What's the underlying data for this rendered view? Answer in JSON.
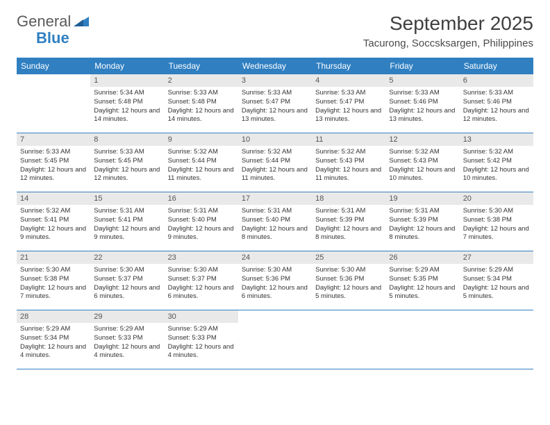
{
  "brand": {
    "name_part1": "General",
    "name_part2": "Blue",
    "accent_color": "#2f7fc1",
    "text_color": "#5a5a5a"
  },
  "header": {
    "month_title": "September 2025",
    "location": "Tacurong, Soccsksargen, Philippines",
    "title_fontsize": 28,
    "location_fontsize": 15
  },
  "calendar": {
    "header_bg": "#2f7fc1",
    "header_text_color": "#ffffff",
    "date_bg": "#e9e9e9",
    "border_color": "#2f7fc1",
    "weekdays": [
      "Sunday",
      "Monday",
      "Tuesday",
      "Wednesday",
      "Thursday",
      "Friday",
      "Saturday"
    ],
    "weeks": [
      [
        null,
        {
          "date": "1",
          "sunrise": "Sunrise: 5:34 AM",
          "sunset": "Sunset: 5:48 PM",
          "daylight": "Daylight: 12 hours and 14 minutes."
        },
        {
          "date": "2",
          "sunrise": "Sunrise: 5:33 AM",
          "sunset": "Sunset: 5:48 PM",
          "daylight": "Daylight: 12 hours and 14 minutes."
        },
        {
          "date": "3",
          "sunrise": "Sunrise: 5:33 AM",
          "sunset": "Sunset: 5:47 PM",
          "daylight": "Daylight: 12 hours and 13 minutes."
        },
        {
          "date": "4",
          "sunrise": "Sunrise: 5:33 AM",
          "sunset": "Sunset: 5:47 PM",
          "daylight": "Daylight: 12 hours and 13 minutes."
        },
        {
          "date": "5",
          "sunrise": "Sunrise: 5:33 AM",
          "sunset": "Sunset: 5:46 PM",
          "daylight": "Daylight: 12 hours and 13 minutes."
        },
        {
          "date": "6",
          "sunrise": "Sunrise: 5:33 AM",
          "sunset": "Sunset: 5:46 PM",
          "daylight": "Daylight: 12 hours and 12 minutes."
        }
      ],
      [
        {
          "date": "7",
          "sunrise": "Sunrise: 5:33 AM",
          "sunset": "Sunset: 5:45 PM",
          "daylight": "Daylight: 12 hours and 12 minutes."
        },
        {
          "date": "8",
          "sunrise": "Sunrise: 5:33 AM",
          "sunset": "Sunset: 5:45 PM",
          "daylight": "Daylight: 12 hours and 12 minutes."
        },
        {
          "date": "9",
          "sunrise": "Sunrise: 5:32 AM",
          "sunset": "Sunset: 5:44 PM",
          "daylight": "Daylight: 12 hours and 11 minutes."
        },
        {
          "date": "10",
          "sunrise": "Sunrise: 5:32 AM",
          "sunset": "Sunset: 5:44 PM",
          "daylight": "Daylight: 12 hours and 11 minutes."
        },
        {
          "date": "11",
          "sunrise": "Sunrise: 5:32 AM",
          "sunset": "Sunset: 5:43 PM",
          "daylight": "Daylight: 12 hours and 11 minutes."
        },
        {
          "date": "12",
          "sunrise": "Sunrise: 5:32 AM",
          "sunset": "Sunset: 5:43 PM",
          "daylight": "Daylight: 12 hours and 10 minutes."
        },
        {
          "date": "13",
          "sunrise": "Sunrise: 5:32 AM",
          "sunset": "Sunset: 5:42 PM",
          "daylight": "Daylight: 12 hours and 10 minutes."
        }
      ],
      [
        {
          "date": "14",
          "sunrise": "Sunrise: 5:32 AM",
          "sunset": "Sunset: 5:41 PM",
          "daylight": "Daylight: 12 hours and 9 minutes."
        },
        {
          "date": "15",
          "sunrise": "Sunrise: 5:31 AM",
          "sunset": "Sunset: 5:41 PM",
          "daylight": "Daylight: 12 hours and 9 minutes."
        },
        {
          "date": "16",
          "sunrise": "Sunrise: 5:31 AM",
          "sunset": "Sunset: 5:40 PM",
          "daylight": "Daylight: 12 hours and 9 minutes."
        },
        {
          "date": "17",
          "sunrise": "Sunrise: 5:31 AM",
          "sunset": "Sunset: 5:40 PM",
          "daylight": "Daylight: 12 hours and 8 minutes."
        },
        {
          "date": "18",
          "sunrise": "Sunrise: 5:31 AM",
          "sunset": "Sunset: 5:39 PM",
          "daylight": "Daylight: 12 hours and 8 minutes."
        },
        {
          "date": "19",
          "sunrise": "Sunrise: 5:31 AM",
          "sunset": "Sunset: 5:39 PM",
          "daylight": "Daylight: 12 hours and 8 minutes."
        },
        {
          "date": "20",
          "sunrise": "Sunrise: 5:30 AM",
          "sunset": "Sunset: 5:38 PM",
          "daylight": "Daylight: 12 hours and 7 minutes."
        }
      ],
      [
        {
          "date": "21",
          "sunrise": "Sunrise: 5:30 AM",
          "sunset": "Sunset: 5:38 PM",
          "daylight": "Daylight: 12 hours and 7 minutes."
        },
        {
          "date": "22",
          "sunrise": "Sunrise: 5:30 AM",
          "sunset": "Sunset: 5:37 PM",
          "daylight": "Daylight: 12 hours and 6 minutes."
        },
        {
          "date": "23",
          "sunrise": "Sunrise: 5:30 AM",
          "sunset": "Sunset: 5:37 PM",
          "daylight": "Daylight: 12 hours and 6 minutes."
        },
        {
          "date": "24",
          "sunrise": "Sunrise: 5:30 AM",
          "sunset": "Sunset: 5:36 PM",
          "daylight": "Daylight: 12 hours and 6 minutes."
        },
        {
          "date": "25",
          "sunrise": "Sunrise: 5:30 AM",
          "sunset": "Sunset: 5:36 PM",
          "daylight": "Daylight: 12 hours and 5 minutes."
        },
        {
          "date": "26",
          "sunrise": "Sunrise: 5:29 AM",
          "sunset": "Sunset: 5:35 PM",
          "daylight": "Daylight: 12 hours and 5 minutes."
        },
        {
          "date": "27",
          "sunrise": "Sunrise: 5:29 AM",
          "sunset": "Sunset: 5:34 PM",
          "daylight": "Daylight: 12 hours and 5 minutes."
        }
      ],
      [
        {
          "date": "28",
          "sunrise": "Sunrise: 5:29 AM",
          "sunset": "Sunset: 5:34 PM",
          "daylight": "Daylight: 12 hours and 4 minutes."
        },
        {
          "date": "29",
          "sunrise": "Sunrise: 5:29 AM",
          "sunset": "Sunset: 5:33 PM",
          "daylight": "Daylight: 12 hours and 4 minutes."
        },
        {
          "date": "30",
          "sunrise": "Sunrise: 5:29 AM",
          "sunset": "Sunset: 5:33 PM",
          "daylight": "Daylight: 12 hours and 4 minutes."
        },
        null,
        null,
        null,
        null
      ]
    ]
  }
}
